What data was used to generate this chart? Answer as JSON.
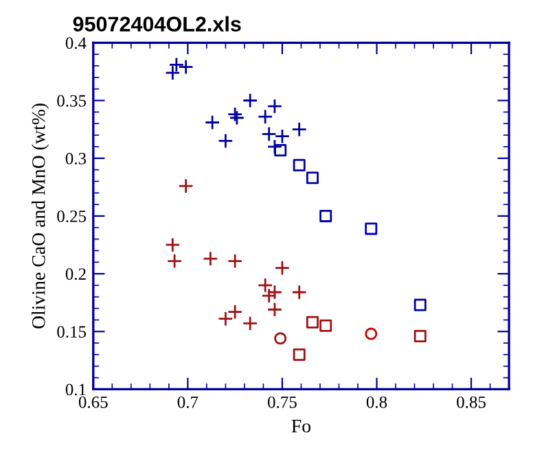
{
  "chart_data": {
    "type": "scatter",
    "title": "95072404OL2.xls",
    "xlabel": "Fo",
    "ylabel": "Olivine CaO and MnO (wt%)",
    "xlim": [
      0.65,
      0.87
    ],
    "ylim": [
      0.1,
      0.4
    ],
    "xticks": [
      0.65,
      0.7,
      0.75,
      0.8,
      0.85
    ],
    "yticks": [
      0.1,
      0.15,
      0.2,
      0.25,
      0.3,
      0.35,
      0.4
    ],
    "grid": false,
    "legend": false,
    "series": [
      {
        "color": "#0000a0",
        "marker": "cross",
        "x": [
          0.692,
          0.694,
          0.699,
          0.713,
          0.72,
          0.733,
          0.725
        ],
        "values": [
          0.374,
          0.381,
          0.379,
          0.331,
          0.315,
          0.35,
          0.338
        ]
      },
      {
        "color": "#0000a0",
        "marker": "cross",
        "x": [
          0.726,
          0.741,
          0.746,
          0.743,
          0.75,
          0.759,
          0.746
        ],
        "values": [
          0.335,
          0.336,
          0.345,
          0.321,
          0.319,
          0.325,
          0.31
        ]
      },
      {
        "color": "#0000a0",
        "marker": "square",
        "x": [
          0.749
        ],
        "values": [
          0.307
        ]
      },
      {
        "color": "#0000a0",
        "marker": "square",
        "x": [
          0.759,
          0.766,
          0.773,
          0.823
        ],
        "values": [
          0.294,
          0.283,
          0.25,
          0.173
        ]
      },
      {
        "color": "#0000c8",
        "marker": "square",
        "x": [
          0.797
        ],
        "values": [
          0.239
        ]
      },
      {
        "color": "#a01010",
        "marker": "cross",
        "x": [
          0.699,
          0.692,
          0.693,
          0.712,
          0.72,
          0.725,
          0.733
        ],
        "values": [
          0.276,
          0.225,
          0.211,
          0.213,
          0.161,
          0.167,
          0.157
        ]
      },
      {
        "color": "#a01010",
        "marker": "cross",
        "x": [
          0.725,
          0.75,
          0.741,
          0.746,
          0.743,
          0.759,
          0.746
        ],
        "values": [
          0.211,
          0.205,
          0.19,
          0.184,
          0.181,
          0.184,
          0.169
        ]
      },
      {
        "color": "#a01010",
        "marker": "circle",
        "x": [
          0.749
        ],
        "values": [
          0.144
        ]
      },
      {
        "color": "#a01010",
        "marker": "square",
        "x": [
          0.766,
          0.773,
          0.759,
          0.823
        ],
        "values": [
          0.158,
          0.155,
          0.13,
          0.146
        ]
      },
      {
        "color": "#c80000",
        "marker": "circle",
        "x": [
          0.797
        ],
        "values": [
          0.148
        ]
      }
    ]
  }
}
